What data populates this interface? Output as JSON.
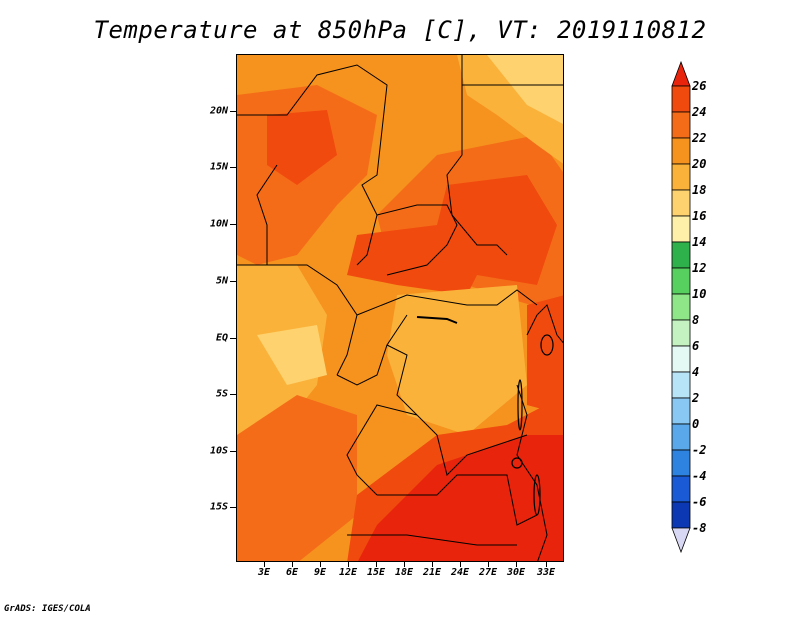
{
  "title": "Temperature at 850hPa [C], VT: 2019110812",
  "credit": "GrADS: IGES/COLA",
  "map": {
    "y_ticks": [
      "20N",
      "15N",
      "10N",
      "5N",
      "EQ",
      "5S",
      "10S",
      "15S"
    ],
    "x_ticks": [
      "3E",
      "6E",
      "9E",
      "12E",
      "15E",
      "18E",
      "21E",
      "24E",
      "27E",
      "30E",
      "33E"
    ]
  },
  "colorbar": {
    "labels": [
      "26",
      "24",
      "22",
      "20",
      "18",
      "16",
      "14",
      "12",
      "10",
      "8",
      "6",
      "4",
      "2",
      "0",
      "-2",
      "-4",
      "-6",
      "-8"
    ],
    "colors": [
      "#e8240c",
      "#f04a0e",
      "#f46c18",
      "#f6921e",
      "#fab23a",
      "#fed26e",
      "#fef0a8",
      "#2eb04a",
      "#58d060",
      "#8ee688",
      "#c4f2c0",
      "#e4f8f4",
      "#b8e4f8",
      "#88c8f2",
      "#5aa8ea",
      "#2e82e0",
      "#1a5ad4",
      "#0c38b4",
      "#0a1480",
      "#d8d8f4"
    ]
  }
}
